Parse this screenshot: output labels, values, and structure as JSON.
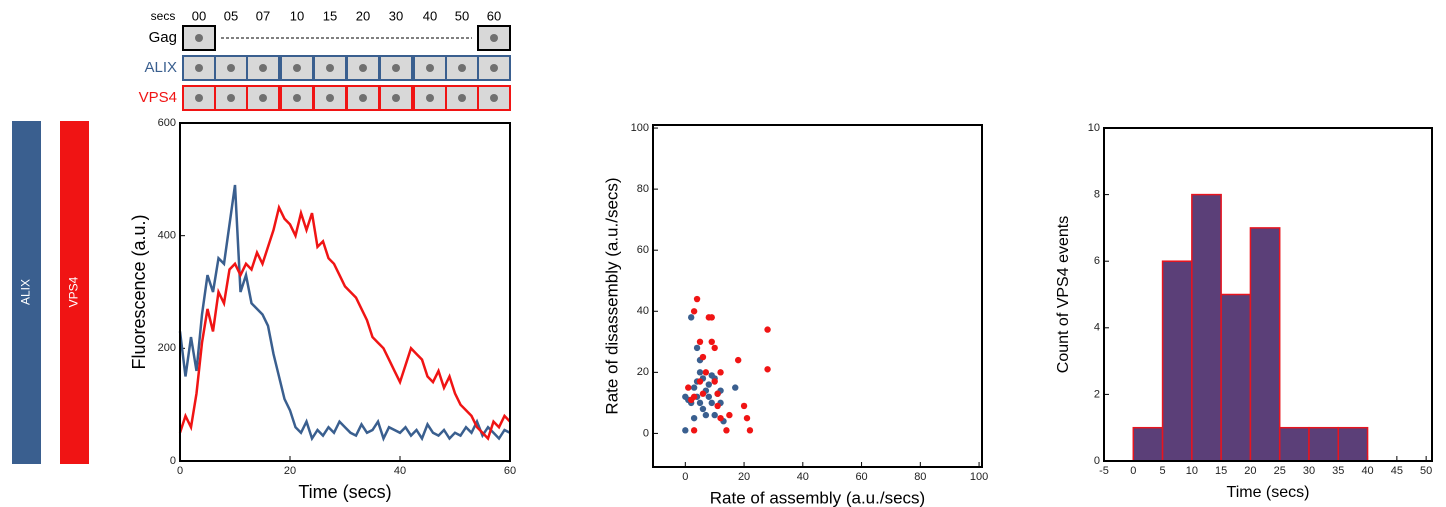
{
  "strip": {
    "time_label": "secs",
    "times": [
      "00",
      "05",
      "07",
      "10",
      "15",
      "20",
      "30",
      "40",
      "50",
      "60"
    ],
    "rows": [
      "Gag",
      "ALIX",
      "VPS4"
    ]
  },
  "chart_data": [
    {
      "type": "line",
      "xlabel": "Time (secs)",
      "ylabel": "Fluorescence (a.u.)",
      "xlim": [
        0,
        60
      ],
      "ylim": [
        0,
        600
      ],
      "xticks": [
        0,
        20,
        40,
        60
      ],
      "yticks": [
        0,
        200,
        400,
        600
      ],
      "x": [
        0,
        1,
        2,
        3,
        4,
        5,
        6,
        7,
        8,
        9,
        10,
        11,
        12,
        13,
        14,
        15,
        16,
        17,
        18,
        19,
        20,
        21,
        22,
        23,
        24,
        25,
        26,
        27,
        28,
        29,
        30,
        31,
        32,
        33,
        34,
        35,
        36,
        37,
        38,
        39,
        40,
        41,
        42,
        43,
        44,
        45,
        46,
        47,
        48,
        49,
        50,
        51,
        52,
        53,
        54,
        55,
        56,
        57,
        58,
        59,
        60
      ],
      "series": [
        {
          "name": "ALIX",
          "color": "#3a5f8f",
          "values": [
            230,
            150,
            220,
            160,
            260,
            330,
            300,
            360,
            350,
            420,
            490,
            300,
            330,
            280,
            270,
            260,
            240,
            190,
            150,
            110,
            90,
            60,
            50,
            70,
            40,
            55,
            45,
            60,
            50,
            70,
            60,
            50,
            45,
            65,
            50,
            55,
            70,
            40,
            60,
            55,
            50,
            60,
            45,
            55,
            40,
            65,
            50,
            45,
            55,
            40,
            50,
            45,
            60,
            50,
            70,
            45,
            60,
            50,
            40,
            55,
            50
          ]
        },
        {
          "name": "VPS4",
          "color": "#f01414",
          "values": [
            50,
            80,
            60,
            120,
            210,
            270,
            230,
            300,
            280,
            340,
            350,
            330,
            350,
            340,
            370,
            350,
            380,
            410,
            450,
            430,
            420,
            400,
            440,
            410,
            440,
            380,
            390,
            360,
            350,
            330,
            310,
            300,
            290,
            270,
            250,
            220,
            210,
            200,
            180,
            160,
            140,
            170,
            200,
            190,
            180,
            150,
            140,
            160,
            130,
            150,
            120,
            100,
            90,
            80,
            60,
            50,
            40,
            70,
            60,
            80,
            70
          ]
        }
      ]
    },
    {
      "type": "scatter",
      "xlabel": "Rate of assembly (a.u./secs)",
      "ylabel": "Rate of disassembly (a.u./secs)",
      "xlim": [
        -11,
        101
      ],
      "ylim": [
        -11,
        101
      ],
      "xticks": [
        0,
        20,
        40,
        60,
        80,
        100
      ],
      "yticks": [
        0,
        20,
        40,
        60,
        80,
        100
      ],
      "series": [
        {
          "color": "#3a5f8f",
          "x": [
            0,
            0,
            1,
            2,
            2,
            3,
            3,
            4,
            4,
            5,
            5,
            6,
            6,
            7,
            7,
            8,
            9,
            9,
            10,
            10,
            11,
            12,
            13,
            12,
            17,
            5,
            4,
            8
          ],
          "values": [
            1,
            12,
            11,
            38,
            10,
            5,
            15,
            17,
            12,
            24,
            10,
            18,
            8,
            6,
            14,
            12,
            19,
            10,
            18,
            6,
            13,
            10,
            4,
            14,
            15,
            20,
            28,
            16
          ]
        },
        {
          "color": "#f01414",
          "x": [
            3,
            4,
            1,
            2,
            3,
            5,
            5,
            6,
            7,
            8,
            9,
            9,
            10,
            10,
            11,
            11,
            12,
            12,
            14,
            15,
            18,
            20,
            21,
            22,
            28,
            28,
            6,
            3
          ],
          "values": [
            40,
            44,
            15,
            11,
            1,
            30,
            17,
            13,
            20,
            38,
            38,
            30,
            28,
            17,
            13,
            9,
            20,
            5,
            1,
            6,
            24,
            9,
            5,
            1,
            34,
            21,
            25,
            12
          ]
        }
      ]
    },
    {
      "type": "histogram",
      "xlabel": "Time (secs)",
      "ylabel": "Count of VPS4 events",
      "xlim": [
        -5,
        51
      ],
      "ylim": [
        0,
        10
      ],
      "xticks": [
        -5,
        0,
        5,
        10,
        15,
        20,
        25,
        30,
        35,
        40,
        45,
        50
      ],
      "yticks": [
        0,
        2,
        4,
        6,
        8,
        10
      ],
      "bins": [
        0,
        5,
        10,
        15,
        20,
        25,
        30,
        35,
        40
      ],
      "values": [
        1,
        6,
        8,
        5,
        7,
        1,
        1,
        1
      ],
      "color": "#5b3f78",
      "edgecolor": "#e8141e"
    }
  ]
}
